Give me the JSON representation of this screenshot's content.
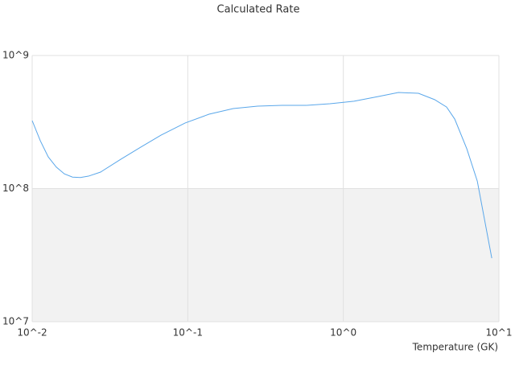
{
  "chart_data": {
    "type": "line",
    "title": "Calculated Rate",
    "x_label": "Temperature (GK)",
    "x_scale": "log",
    "y_scale": "log",
    "grid": true,
    "color": "#5aa7ea",
    "xlim": [
      0.01,
      10
    ],
    "ylim": [
      10000000,
      1000000000
    ],
    "xticks": [
      {
        "value": 0.01,
        "label": "10^-2"
      },
      {
        "value": 0.1,
        "label": "10^-1"
      },
      {
        "value": 1,
        "label": "10^0"
      },
      {
        "value": 10,
        "label": "10^1"
      }
    ],
    "yticks": [
      {
        "value": 10000000,
        "label": "10^7"
      },
      {
        "value": 100000000,
        "label": "10^8"
      },
      {
        "value": 1000000000,
        "label": "10^9"
      }
    ],
    "x": [
      0.01,
      0.01127,
      0.01268,
      0.01429,
      0.0161,
      0.01816,
      0.0204,
      0.023,
      0.0275,
      0.0371,
      0.0499,
      0.0673,
      0.0962,
      0.137,
      0.196,
      0.281,
      0.402,
      0.574,
      0.82,
      1.17,
      1.68,
      2.26,
      3.04,
      3.86,
      4.61,
      5.2,
      6.22,
      7.26,
      9.0
    ],
    "values": [
      324000000,
      229000000,
      173000000,
      145000000,
      129000000,
      122000000,
      121000000,
      124000000,
      133000000,
      166000000,
      205000000,
      252000000,
      311000000,
      362000000,
      399000000,
      416000000,
      422000000,
      422000000,
      434000000,
      453000000,
      492000000,
      527000000,
      520000000,
      466000000,
      410000000,
      333000000,
      199000000,
      114000000,
      30000000
    ]
  }
}
